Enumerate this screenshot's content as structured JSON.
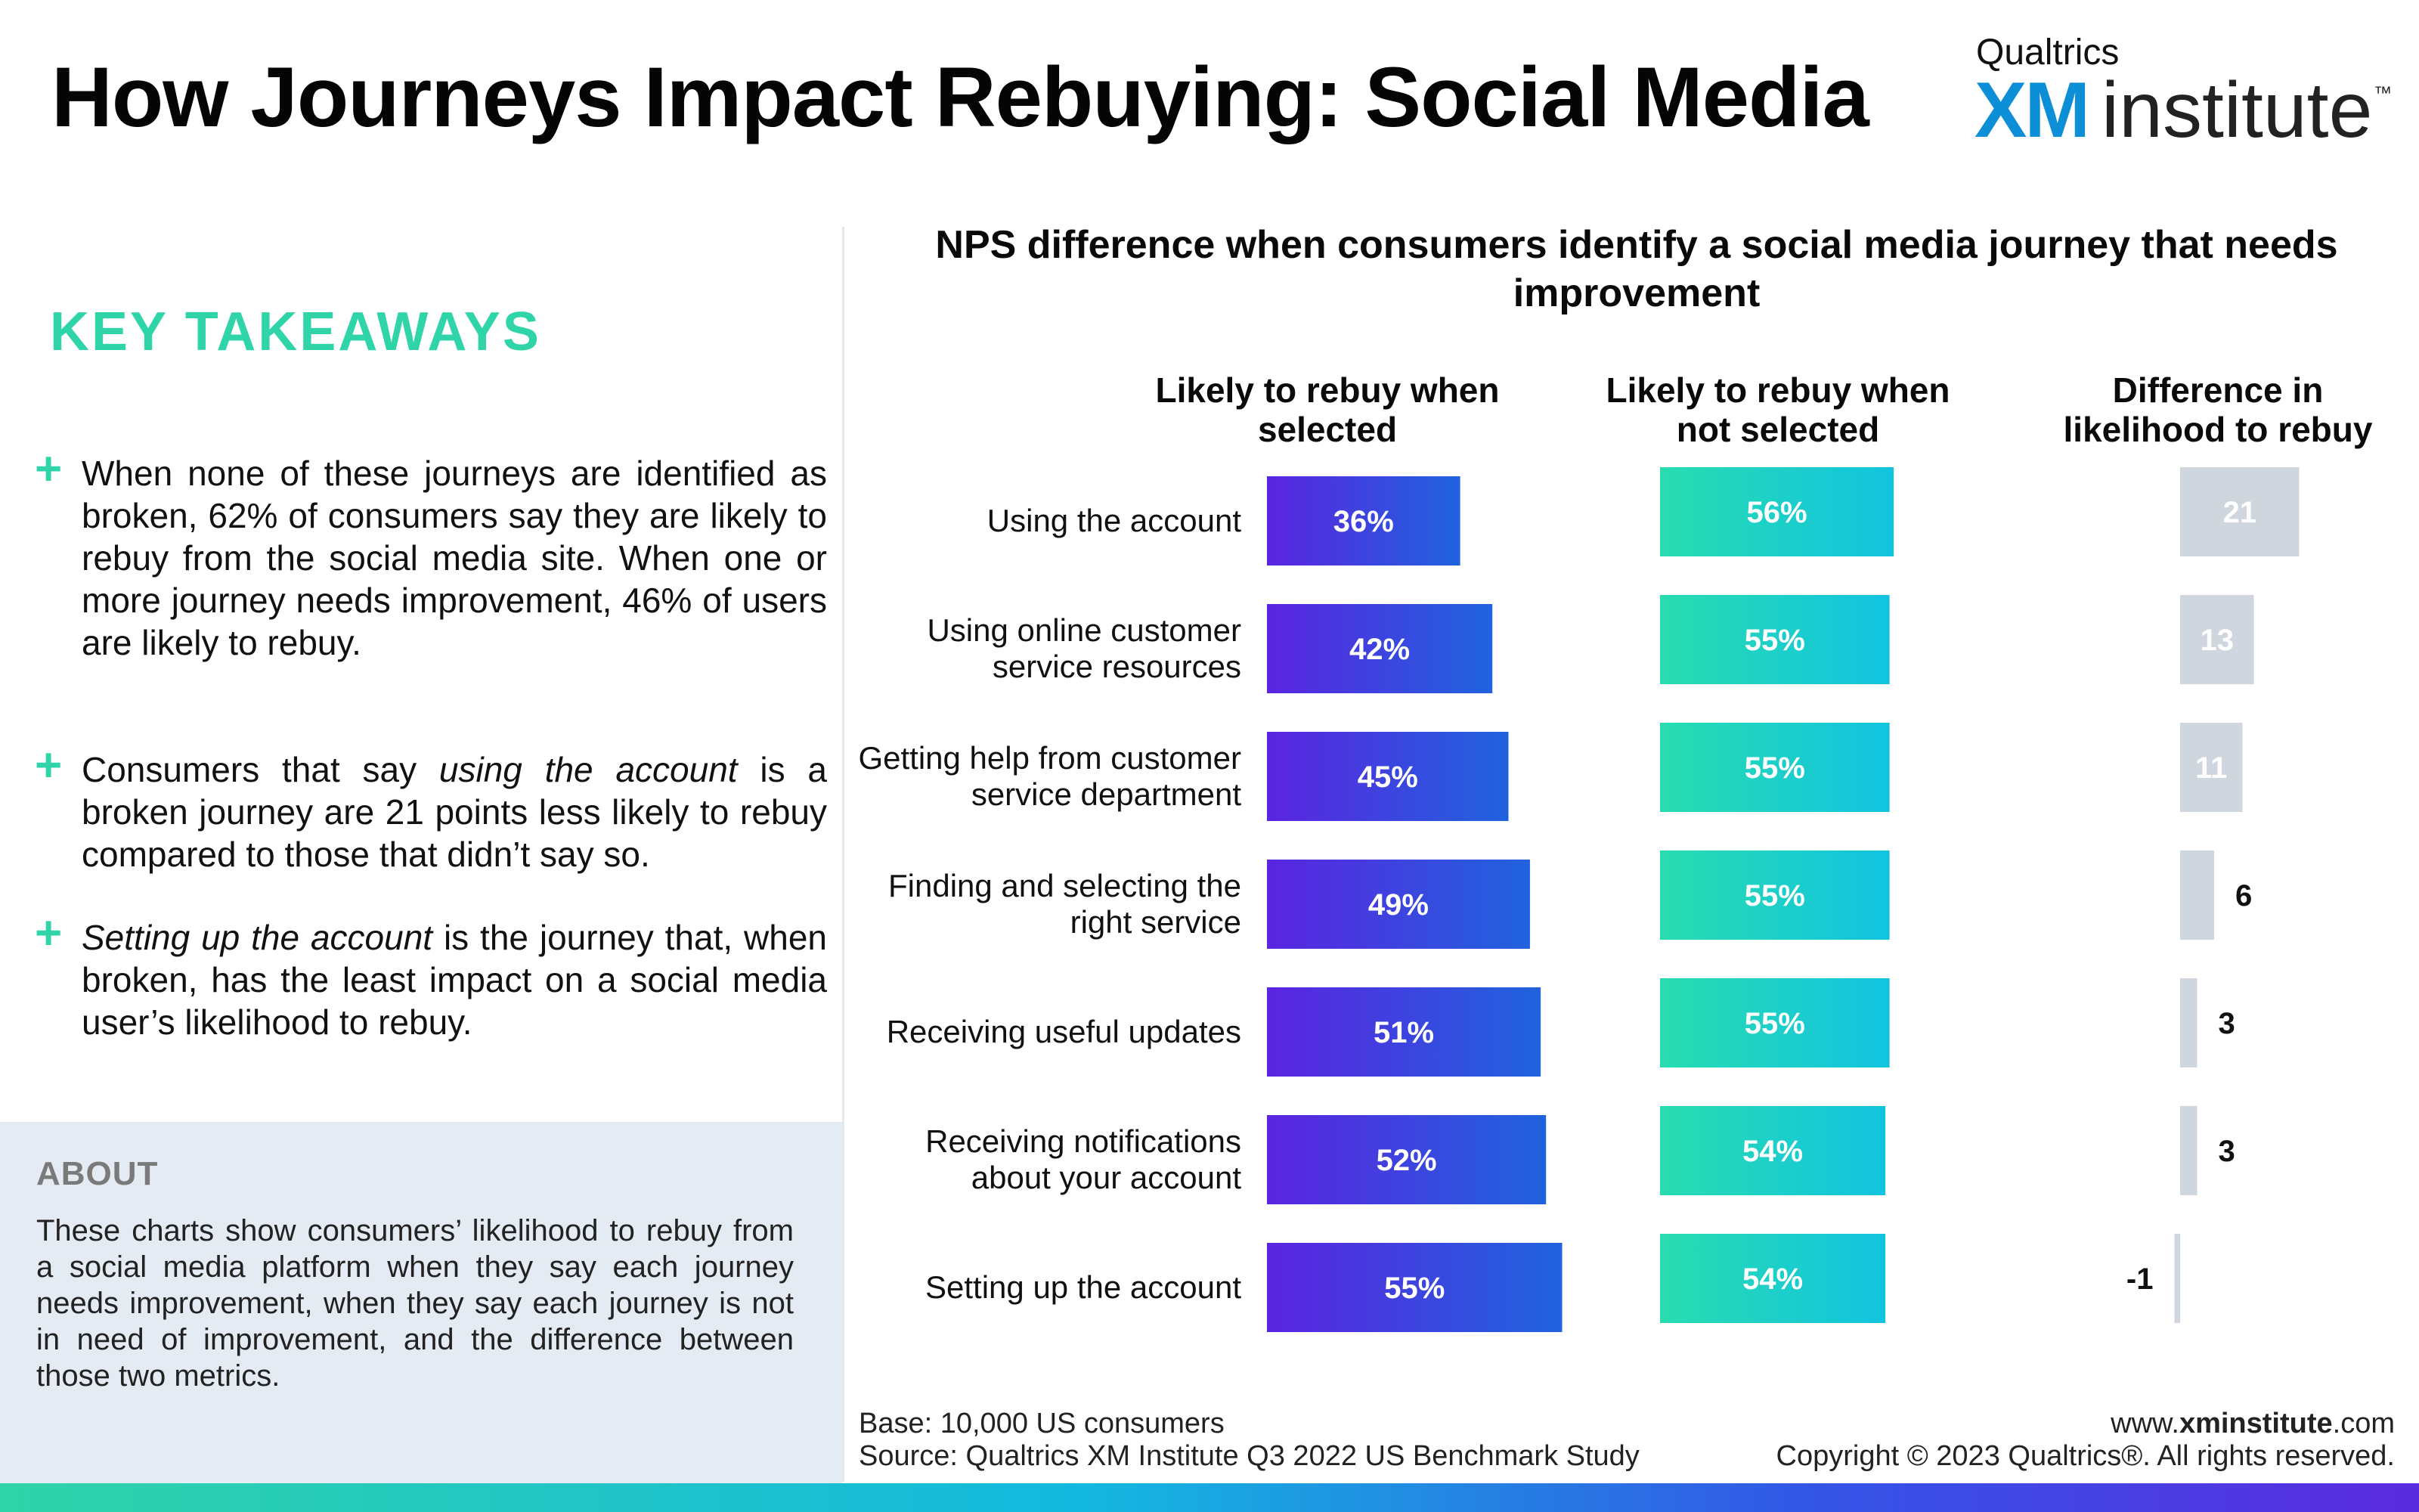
{
  "page": {
    "title": "How Journeys Impact Rebuying: Social Media",
    "logo": {
      "brand": "Qualtrics",
      "xm": "XM",
      "institute": "institute",
      "tm": "™"
    }
  },
  "takeaways": {
    "heading": "KEY TAKEAWAYS",
    "items": [
      {
        "html": "When none of these journeys are identified as broken, 62% of consumers say they are likely to rebuy from the social media site. When one or more journey needs improvement, 46% of users are likely to rebuy."
      },
      {
        "html": "Consumers that say <i>using the account</i> is a broken journey are 21 points less likely to rebuy compared to those that didn’t say so."
      },
      {
        "html": "<i>Setting up the account</i> is the journey that, when broken, has the least impact on a social media user’s likelihood to rebuy."
      }
    ]
  },
  "about": {
    "heading": "ABOUT",
    "text": "These charts show consumers’ likelihood to rebuy from a social media platform when they say each journey needs improvement, when they say each journey is not in need of improvement, and the difference between those two metrics."
  },
  "footer": {
    "base": "Base: 10,000 US consumers",
    "source": "Source: Qualtrics XM Institute Q3 2022 US Benchmark Study",
    "url_prefix": "www.",
    "url_bold": "xminstitute",
    "url_suffix": ".com",
    "copyright": "Copyright © 2023 Qualtrics®. All rights reserved."
  },
  "chart_data": {
    "type": "bar",
    "title": "NPS difference when consumers identify a social media journey that needs improvement",
    "categories": [
      "Using the account",
      "Using online customer service resources",
      "Getting help from customer service department",
      "Finding and selecting the right service",
      "Receiving useful updates",
      "Receiving notifications about your account",
      "Setting up the account"
    ],
    "category_lines": [
      [
        "Using the account"
      ],
      [
        "Using online customer",
        "service resources"
      ],
      [
        "Getting help from customer",
        "service department"
      ],
      [
        "Finding and selecting the",
        "right service"
      ],
      [
        "Receiving useful updates"
      ],
      [
        "Receiving notifications",
        "about your account"
      ],
      [
        "Setting up the account"
      ]
    ],
    "series": [
      {
        "name": "Likely to rebuy when selected",
        "header_lines": [
          "Likely to rebuy when",
          "selected"
        ],
        "values": [
          36,
          42,
          45,
          49,
          51,
          52,
          55
        ],
        "labels": [
          "36%",
          "42%",
          "45%",
          "49%",
          "51%",
          "52%",
          "55%"
        ]
      },
      {
        "name": "Likely to rebuy when not selected",
        "header_lines": [
          "Likely to rebuy when",
          "not selected"
        ],
        "values": [
          56,
          55,
          55,
          55,
          55,
          54,
          54
        ],
        "labels": [
          "56%",
          "55%",
          "55%",
          "55%",
          "55%",
          "54%",
          "54%"
        ]
      },
      {
        "name": "Difference in likelihood to rebuy",
        "header_lines": [
          "Difference in",
          "likelihood to rebuy"
        ],
        "values": [
          21,
          13,
          11,
          6,
          3,
          3,
          -1
        ],
        "labels": [
          "21",
          "13",
          "11",
          "6",
          "3",
          "3",
          "-1"
        ]
      }
    ],
    "colors": {
      "selected_gradient": [
        "#5b24e0",
        "#1f63de"
      ],
      "not_selected_gradient": [
        "#28dcb0",
        "#12c3e0"
      ],
      "difference_bar": "#cfd6dd",
      "label_on_bar": "#ffffff",
      "label_outside": "#111111"
    }
  }
}
